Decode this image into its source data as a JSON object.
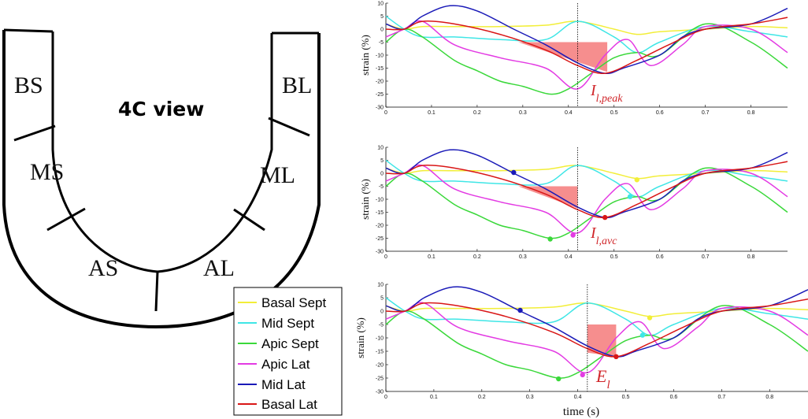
{
  "diagram": {
    "view_title": "4C view",
    "segments": [
      "BS",
      "MS",
      "AS",
      "AL",
      "ML",
      "BL"
    ]
  },
  "legend": {
    "items": [
      {
        "label": "Basal Sept",
        "color": "#f2ee38"
      },
      {
        "label": "Mid Sept",
        "color": "#3fe6e6"
      },
      {
        "label": "Apic Sept",
        "color": "#3ad83a"
      },
      {
        "label": "Apic Lat",
        "color": "#e33ae3"
      },
      {
        "label": "Mid Lat",
        "color": "#1a1ab8"
      },
      {
        "label": "Basal Lat",
        "color": "#d91616"
      }
    ]
  },
  "chart_data": [
    {
      "type": "line",
      "ylabel": "strain (%)",
      "xlabel": "",
      "xlim": [
        0,
        0.88
      ],
      "ylim": [
        -30,
        10
      ],
      "xticks": [
        "0",
        "0.1",
        "0.2",
        "0.3",
        "0.4",
        "0.5",
        "0.6",
        "0.7",
        "0.8"
      ],
      "yticks": [
        "10",
        "5",
        "0",
        "-5",
        "-10",
        "-15",
        "-20",
        "-25",
        "-30"
      ],
      "avc_time": 0.42,
      "annotation": {
        "base": "I",
        "sub": "l,peak"
      },
      "shaded_region": {
        "x": [
          0.29,
          0.485
        ],
        "y_top": -5,
        "y_bottom": -16.5,
        "shape": "triangle"
      },
      "markers": [],
      "series": [
        {
          "name": "Basal Sept",
          "color": "#f2ee38",
          "x": [
            0,
            0.04,
            0.08,
            0.15,
            0.25,
            0.35,
            0.42,
            0.5,
            0.55,
            0.6,
            0.7,
            0.8,
            0.88
          ],
          "y": [
            2,
            0,
            1,
            1,
            1,
            1.5,
            3,
            0,
            -2,
            -1,
            0,
            1,
            0.5
          ]
        },
        {
          "name": "Mid Sept",
          "color": "#3fe6e6",
          "x": [
            0,
            0.04,
            0.08,
            0.15,
            0.25,
            0.35,
            0.42,
            0.5,
            0.55,
            0.6,
            0.7,
            0.8,
            0.88
          ],
          "y": [
            5,
            0,
            -3,
            -3,
            -4,
            -4,
            3,
            -3,
            -9,
            -5,
            1,
            -1,
            -3
          ]
        },
        {
          "name": "Apic Sept",
          "color": "#3ad83a",
          "x": [
            0,
            0.04,
            0.08,
            0.15,
            0.2,
            0.25,
            0.3,
            0.36,
            0.4,
            0.45,
            0.5,
            0.55,
            0.6,
            0.7,
            0.8,
            0.88
          ],
          "y": [
            -5,
            0,
            -3,
            -12,
            -16,
            -20,
            -22,
            -25,
            -23,
            -17,
            -11,
            -9,
            -10,
            2,
            -5,
            -15
          ]
        },
        {
          "name": "Apic Lat",
          "color": "#e33ae3",
          "x": [
            0,
            0.04,
            0.08,
            0.15,
            0.25,
            0.35,
            0.42,
            0.48,
            0.53,
            0.58,
            0.65,
            0.7,
            0.8,
            0.88
          ],
          "y": [
            -3,
            0,
            3,
            -6,
            -11,
            -15,
            -23,
            -10,
            -4,
            -14,
            -6,
            1,
            0,
            -9
          ]
        },
        {
          "name": "Mid Lat",
          "color": "#1a1ab8",
          "x": [
            0,
            0.04,
            0.08,
            0.14,
            0.2,
            0.28,
            0.35,
            0.42,
            0.48,
            0.52,
            0.6,
            0.65,
            0.7,
            0.8,
            0.88
          ],
          "y": [
            2,
            0,
            5,
            9,
            7,
            0,
            -6,
            -13,
            -17,
            -15,
            -10,
            -3,
            0,
            2,
            8
          ]
        },
        {
          "name": "Basal Lat",
          "color": "#d91616",
          "x": [
            0,
            0.04,
            0.08,
            0.15,
            0.25,
            0.35,
            0.42,
            0.48,
            0.55,
            0.62,
            0.7,
            0.8,
            0.88
          ],
          "y": [
            0,
            0,
            3,
            2,
            -2,
            -8,
            -14,
            -17,
            -12,
            -6,
            0,
            2,
            4.5
          ]
        }
      ]
    },
    {
      "type": "line",
      "ylabel": "strain (%)",
      "xlabel": "",
      "xlim": [
        0,
        0.88
      ],
      "ylim": [
        -30,
        10
      ],
      "xticks": [
        "0",
        "0.1",
        "0.2",
        "0.3",
        "0.4",
        "0.5",
        "0.6",
        "0.7",
        "0.8"
      ],
      "yticks": [
        "10",
        "5",
        "0",
        "-5",
        "-10",
        "-15",
        "-20",
        "-25",
        "-30"
      ],
      "avc_time": 0.42,
      "annotation": {
        "base": "I",
        "sub": "l,avc"
      },
      "shaded_region": {
        "x": [
          0.29,
          0.42
        ],
        "y_top": -5,
        "y_bottom": -13.5,
        "shape": "triangle"
      },
      "markers": [
        {
          "series": "Mid Lat",
          "x": 0.28,
          "y": 0.3
        },
        {
          "series": "Basal Sept",
          "x": 0.55,
          "y": -2.5
        },
        {
          "series": "Mid Sept",
          "x": 0.535,
          "y": -9
        },
        {
          "series": "Apic Sept",
          "x": 0.36,
          "y": -25.3
        },
        {
          "series": "Apic Lat",
          "x": 0.41,
          "y": -23.8
        },
        {
          "series": "Basal Lat",
          "x": 0.48,
          "y": -17
        }
      ],
      "series": [
        {
          "name": "Basal Sept",
          "color": "#f2ee38",
          "x": [
            0,
            0.04,
            0.08,
            0.15,
            0.25,
            0.35,
            0.42,
            0.5,
            0.55,
            0.6,
            0.7,
            0.8,
            0.88
          ],
          "y": [
            2,
            0,
            1,
            1,
            1,
            1.5,
            3,
            0,
            -2,
            -1,
            0,
            1,
            0.5
          ]
        },
        {
          "name": "Mid Sept",
          "color": "#3fe6e6",
          "x": [
            0,
            0.04,
            0.08,
            0.15,
            0.25,
            0.35,
            0.42,
            0.5,
            0.55,
            0.6,
            0.7,
            0.8,
            0.88
          ],
          "y": [
            5,
            0,
            -3,
            -3,
            -4,
            -4,
            3,
            -3,
            -9,
            -5,
            1,
            -1,
            -3
          ]
        },
        {
          "name": "Apic Sept",
          "color": "#3ad83a",
          "x": [
            0,
            0.04,
            0.08,
            0.15,
            0.2,
            0.25,
            0.3,
            0.36,
            0.4,
            0.45,
            0.5,
            0.55,
            0.6,
            0.7,
            0.8,
            0.88
          ],
          "y": [
            -5,
            0,
            -3,
            -12,
            -16,
            -20,
            -22,
            -25,
            -23,
            -17,
            -11,
            -9,
            -10,
            2,
            -5,
            -15
          ]
        },
        {
          "name": "Apic Lat",
          "color": "#e33ae3",
          "x": [
            0,
            0.04,
            0.08,
            0.15,
            0.25,
            0.35,
            0.42,
            0.48,
            0.53,
            0.58,
            0.65,
            0.7,
            0.8,
            0.88
          ],
          "y": [
            -3,
            0,
            3,
            -6,
            -11,
            -15,
            -23,
            -10,
            -4,
            -14,
            -6,
            1,
            0,
            -9
          ]
        },
        {
          "name": "Mid Lat",
          "color": "#1a1ab8",
          "x": [
            0,
            0.04,
            0.08,
            0.14,
            0.2,
            0.28,
            0.35,
            0.42,
            0.48,
            0.52,
            0.6,
            0.65,
            0.7,
            0.8,
            0.88
          ],
          "y": [
            2,
            0,
            5,
            9,
            7,
            0,
            -6,
            -13,
            -17,
            -15,
            -10,
            -3,
            0,
            2,
            8
          ]
        },
        {
          "name": "Basal Lat",
          "color": "#d91616",
          "x": [
            0,
            0.04,
            0.08,
            0.15,
            0.25,
            0.35,
            0.42,
            0.48,
            0.55,
            0.62,
            0.7,
            0.8,
            0.88
          ],
          "y": [
            0,
            0,
            3,
            2,
            -2,
            -8,
            -14,
            -17,
            -12,
            -6,
            0,
            2,
            4.5
          ]
        }
      ]
    },
    {
      "type": "line",
      "ylabel": "strain (%)",
      "xlabel": "time (s)",
      "xlim": [
        0,
        0.88
      ],
      "ylim": [
        -30,
        10
      ],
      "xticks": [
        "0",
        "0.1",
        "0.2",
        "0.3",
        "0.4",
        "0.5",
        "0.6",
        "0.7",
        "0.8"
      ],
      "yticks": [
        "10",
        "5",
        "0",
        "-5",
        "-10",
        "-15",
        "-20",
        "-25",
        "-30"
      ],
      "avc_time": 0.42,
      "annotation": {
        "base": "E",
        "sub": "l"
      },
      "shaded_region": {
        "x": [
          0.42,
          0.48
        ],
        "y_top": -5,
        "y_bottom": -17,
        "shape": "trapezoid"
      },
      "markers": [
        {
          "series": "Mid Lat",
          "x": 0.28,
          "y": 0.3
        },
        {
          "series": "Basal Sept",
          "x": 0.55,
          "y": -2.5
        },
        {
          "series": "Mid Sept",
          "x": 0.535,
          "y": -9
        },
        {
          "series": "Apic Sept",
          "x": 0.36,
          "y": -25.3
        },
        {
          "series": "Apic Lat",
          "x": 0.41,
          "y": -23.8
        },
        {
          "series": "Basal Lat",
          "x": 0.48,
          "y": -17
        }
      ],
      "series": [
        {
          "name": "Basal Sept",
          "color": "#f2ee38",
          "x": [
            0,
            0.04,
            0.08,
            0.15,
            0.25,
            0.35,
            0.42,
            0.5,
            0.55,
            0.6,
            0.7,
            0.8,
            0.88
          ],
          "y": [
            2,
            0,
            1,
            1,
            1,
            1.5,
            3,
            0,
            -2,
            -1,
            0,
            1,
            0.5
          ]
        },
        {
          "name": "Mid Sept",
          "color": "#3fe6e6",
          "x": [
            0,
            0.04,
            0.08,
            0.15,
            0.25,
            0.35,
            0.42,
            0.5,
            0.55,
            0.6,
            0.7,
            0.8,
            0.88
          ],
          "y": [
            5,
            0,
            -3,
            -3,
            -4,
            -4,
            3,
            -3,
            -9,
            -5,
            1,
            -1,
            -3
          ]
        },
        {
          "name": "Apic Sept",
          "color": "#3ad83a",
          "x": [
            0,
            0.04,
            0.08,
            0.15,
            0.2,
            0.25,
            0.3,
            0.36,
            0.4,
            0.45,
            0.5,
            0.55,
            0.6,
            0.7,
            0.8,
            0.88
          ],
          "y": [
            -5,
            0,
            -3,
            -12,
            -16,
            -20,
            -22,
            -25,
            -23,
            -17,
            -11,
            -9,
            -10,
            2,
            -5,
            -15
          ]
        },
        {
          "name": "Apic Lat",
          "color": "#e33ae3",
          "x": [
            0,
            0.04,
            0.08,
            0.15,
            0.25,
            0.35,
            0.42,
            0.48,
            0.53,
            0.58,
            0.65,
            0.7,
            0.8,
            0.88
          ],
          "y": [
            -3,
            0,
            3,
            -6,
            -11,
            -15,
            -23,
            -10,
            -4,
            -14,
            -6,
            1,
            0,
            -9
          ]
        },
        {
          "name": "Mid Lat",
          "color": "#1a1ab8",
          "x": [
            0,
            0.04,
            0.08,
            0.14,
            0.2,
            0.28,
            0.35,
            0.42,
            0.48,
            0.52,
            0.6,
            0.65,
            0.7,
            0.8,
            0.88
          ],
          "y": [
            2,
            0,
            5,
            9,
            7,
            0,
            -6,
            -13,
            -17,
            -15,
            -10,
            -3,
            0,
            2,
            8
          ]
        },
        {
          "name": "Basal Lat",
          "color": "#d91616",
          "x": [
            0,
            0.04,
            0.08,
            0.15,
            0.25,
            0.35,
            0.42,
            0.48,
            0.55,
            0.62,
            0.7,
            0.8,
            0.88
          ],
          "y": [
            0,
            0,
            3,
            2,
            -2,
            -8,
            -14,
            -17,
            -12,
            -6,
            0,
            2,
            4.5
          ]
        }
      ]
    }
  ]
}
